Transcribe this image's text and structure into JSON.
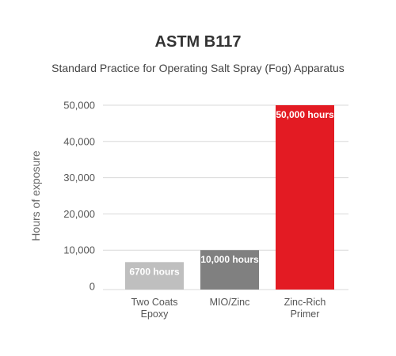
{
  "chart_data": {
    "type": "bar",
    "title": "ASTM B117",
    "subtitle": "Standard Practice for Operating Salt Spray (Fog) Apparatus",
    "ylabel": "Hours of exposure",
    "xlabel": "",
    "ylim": [
      0,
      50000
    ],
    "yticks": [
      0,
      10000,
      20000,
      30000,
      40000,
      50000
    ],
    "ytick_labels": [
      "0",
      "10,000",
      "20,000",
      "30,000",
      "40,000",
      "50,000"
    ],
    "grid": true,
    "categories": [
      [
        "Two Coats",
        "Epoxy"
      ],
      [
        "MIO/Zinc"
      ],
      [
        "Zinc-Rich",
        "Primer"
      ]
    ],
    "values": [
      6700,
      10000,
      50000
    ],
    "data_labels": [
      "6700 hours",
      "10,000 hours",
      "50,000 hours"
    ],
    "colors": [
      "#bfbfbf",
      "#808080",
      "#e31b23"
    ]
  }
}
